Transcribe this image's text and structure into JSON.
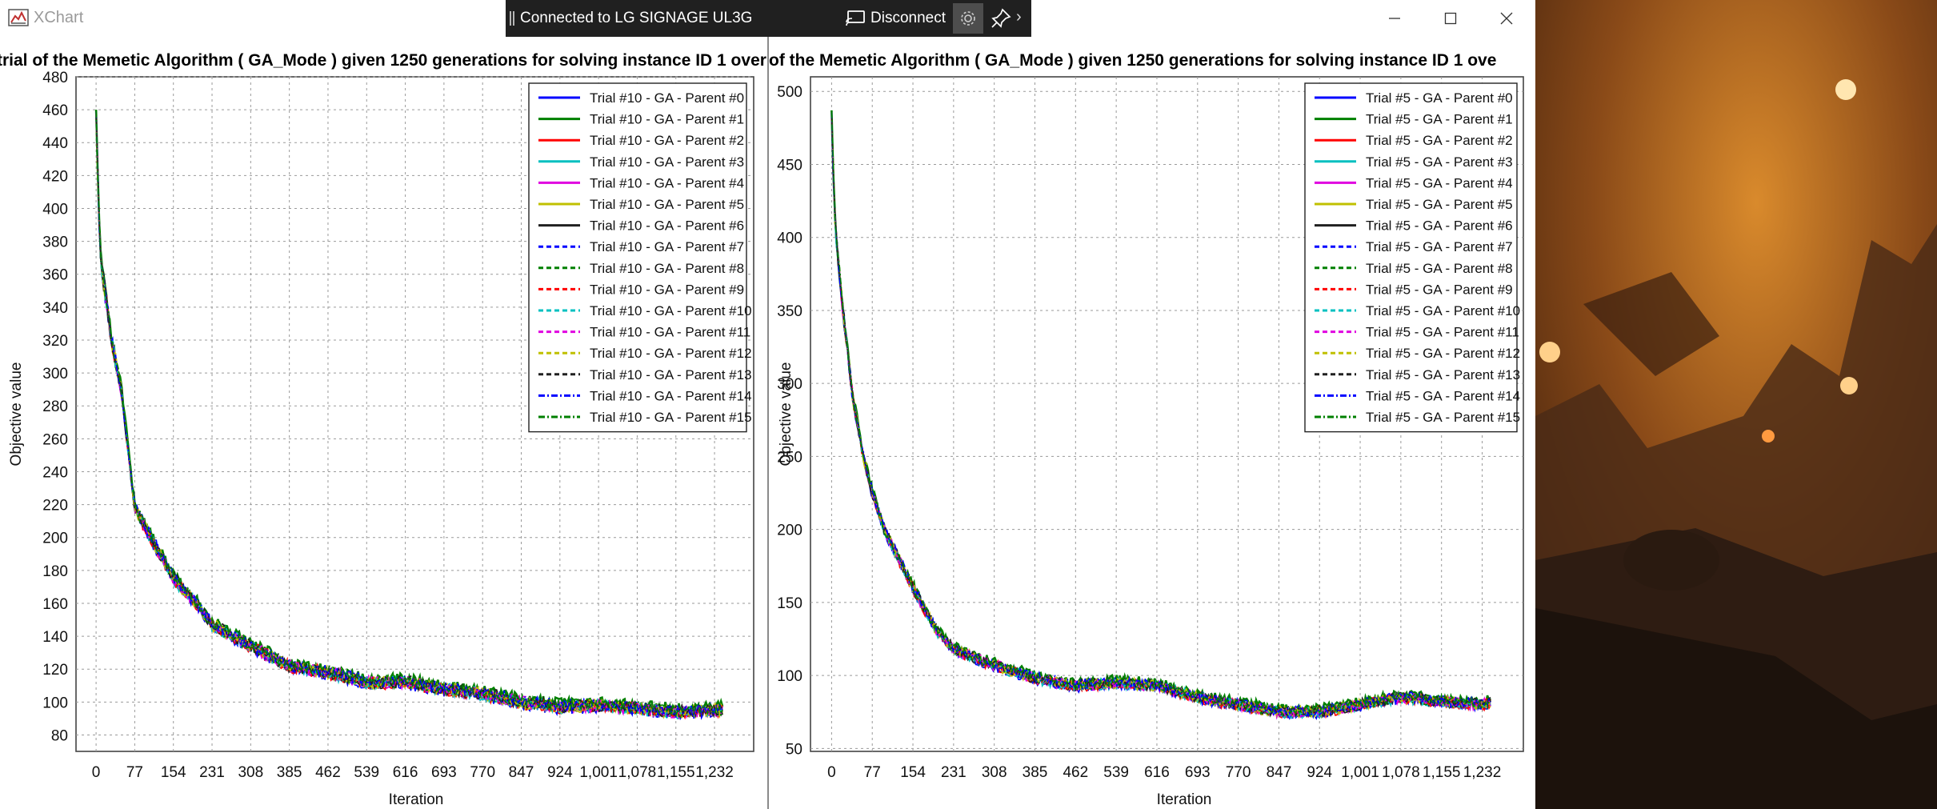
{
  "window": {
    "title": "XChart",
    "controls": {
      "minimize_icon": "minimize-icon",
      "maximize_icon": "maximize-icon",
      "close_icon": "close-icon"
    }
  },
  "cast_bar": {
    "status": "Connected to LG SIGNAGE UL3G",
    "disconnect_label": "Disconnect",
    "icons": [
      "cast-icon",
      "gear-icon",
      "pin-icon",
      "chevron-right-icon"
    ]
  },
  "colors": {
    "legend_series": [
      "#0000ff",
      "#008000",
      "#ff0000",
      "#00c0c0",
      "#e000e0",
      "#c0c000",
      "#202020",
      "#0000ff",
      "#008000",
      "#ff0000",
      "#00c0c0",
      "#e000e0",
      "#c0c000",
      "#202020",
      "#0000ff",
      "#008000"
    ]
  },
  "chart_data": [
    {
      "type": "line",
      "title": "trial of the Memetic Algorithm ( GA_Mode ) given 1250 generations for solving instance ID 1 over",
      "xlabel": "Iteration",
      "ylabel": "Objective value",
      "x_ticks": [
        "0",
        "77",
        "154",
        "231",
        "308",
        "385",
        "462",
        "539",
        "616",
        "693",
        "770",
        "847",
        "924",
        "1,001",
        "1,078",
        "1,155",
        "1,232"
      ],
      "y_ticks": [
        "80",
        "100",
        "120",
        "140",
        "160",
        "180",
        "200",
        "220",
        "240",
        "260",
        "280",
        "300",
        "320",
        "340",
        "360",
        "380",
        "400",
        "420",
        "440",
        "460",
        "480"
      ],
      "xlim": [
        -40,
        1310
      ],
      "ylim": [
        70,
        480
      ],
      "grid": true,
      "legend_position": "top-right",
      "series_names": [
        "Trial #10 - GA - Parent #0",
        "Trial #10 - GA - Parent #1",
        "Trial #10 - GA - Parent #2",
        "Trial #10 - GA - Parent #3",
        "Trial #10 - GA - Parent #4",
        "Trial #10 - GA - Parent #5",
        "Trial #10 - GA - Parent #6",
        "Trial #10 - GA - Parent #7",
        "Trial #10 - GA - Parent #8",
        "Trial #10 - GA - Parent #9",
        "Trial #10 - GA - Parent #10",
        "Trial #10 - GA - Parent #11",
        "Trial #10 - GA - Parent #12",
        "Trial #10 - GA - Parent #13",
        "Trial #10 - GA - Parent #14",
        "Trial #10 - GA - Parent #15"
      ],
      "line_styles": [
        "solid",
        "solid",
        "solid",
        "solid",
        "solid",
        "solid",
        "solid",
        "dashed",
        "dashed",
        "dashed",
        "dashed",
        "dashed",
        "dashed",
        "dashed",
        "dash-dot",
        "dash-dot"
      ],
      "curve": {
        "x": [
          0,
          5,
          10,
          20,
          30,
          40,
          50,
          77,
          100,
          154,
          200,
          231,
          300,
          385,
          462,
          539,
          616,
          693,
          770,
          847,
          924,
          1001,
          1078,
          1155,
          1232,
          1250
        ],
        "y": [
          463,
          400,
          365,
          345,
          320,
          305,
          290,
          218,
          205,
          175,
          160,
          147,
          135,
          122,
          118,
          112,
          112,
          108,
          105,
          100,
          97,
          98,
          96,
          94,
          95,
          95
        ]
      }
    },
    {
      "type": "line",
      "title": "of the Memetic Algorithm ( GA_Mode ) given 1250 generations for solving instance ID 1 ove",
      "xlabel": "Iteration",
      "ylabel": "Objective value",
      "x_ticks": [
        "0",
        "77",
        "154",
        "231",
        "308",
        "385",
        "462",
        "539",
        "616",
        "693",
        "770",
        "847",
        "924",
        "1,001",
        "1,078",
        "1,155",
        "1,232"
      ],
      "y_ticks": [
        "50",
        "100",
        "150",
        "200",
        "250",
        "300",
        "350",
        "400",
        "450",
        "500"
      ],
      "xlim": [
        -40,
        1310
      ],
      "ylim": [
        48,
        510
      ],
      "grid": true,
      "legend_position": "top-right",
      "series_names": [
        "Trial #5 - GA - Parent #0",
        "Trial #5 - GA - Parent #1",
        "Trial #5 - GA - Parent #2",
        "Trial #5 - GA - Parent #3",
        "Trial #5 - GA - Parent #4",
        "Trial #5 - GA - Parent #5",
        "Trial #5 - GA - Parent #6",
        "Trial #5 - GA - Parent #7",
        "Trial #5 - GA - Parent #8",
        "Trial #5 - GA - Parent #9",
        "Trial #5 - GA - Parent #10",
        "Trial #5 - GA - Parent #11",
        "Trial #5 - GA - Parent #12",
        "Trial #5 - GA - Parent #13",
        "Trial #5 - GA - Parent #14",
        "Trial #5 - GA - Parent #15"
      ],
      "line_styles": [
        "solid",
        "solid",
        "solid",
        "solid",
        "solid",
        "solid",
        "solid",
        "dashed",
        "dashed",
        "dashed",
        "dashed",
        "dashed",
        "dashed",
        "dashed",
        "dash-dot",
        "dash-dot"
      ],
      "curve": {
        "x": [
          0,
          5,
          10,
          20,
          40,
          60,
          77,
          100,
          154,
          200,
          231,
          300,
          385,
          462,
          539,
          616,
          693,
          770,
          847,
          924,
          1001,
          1078,
          1155,
          1232,
          1250
        ],
        "y": [
          490,
          420,
          395,
          355,
          290,
          250,
          225,
          200,
          160,
          130,
          118,
          108,
          98,
          93,
          95,
          93,
          85,
          80,
          75,
          75,
          80,
          85,
          82,
          80,
          82
        ]
      }
    }
  ]
}
